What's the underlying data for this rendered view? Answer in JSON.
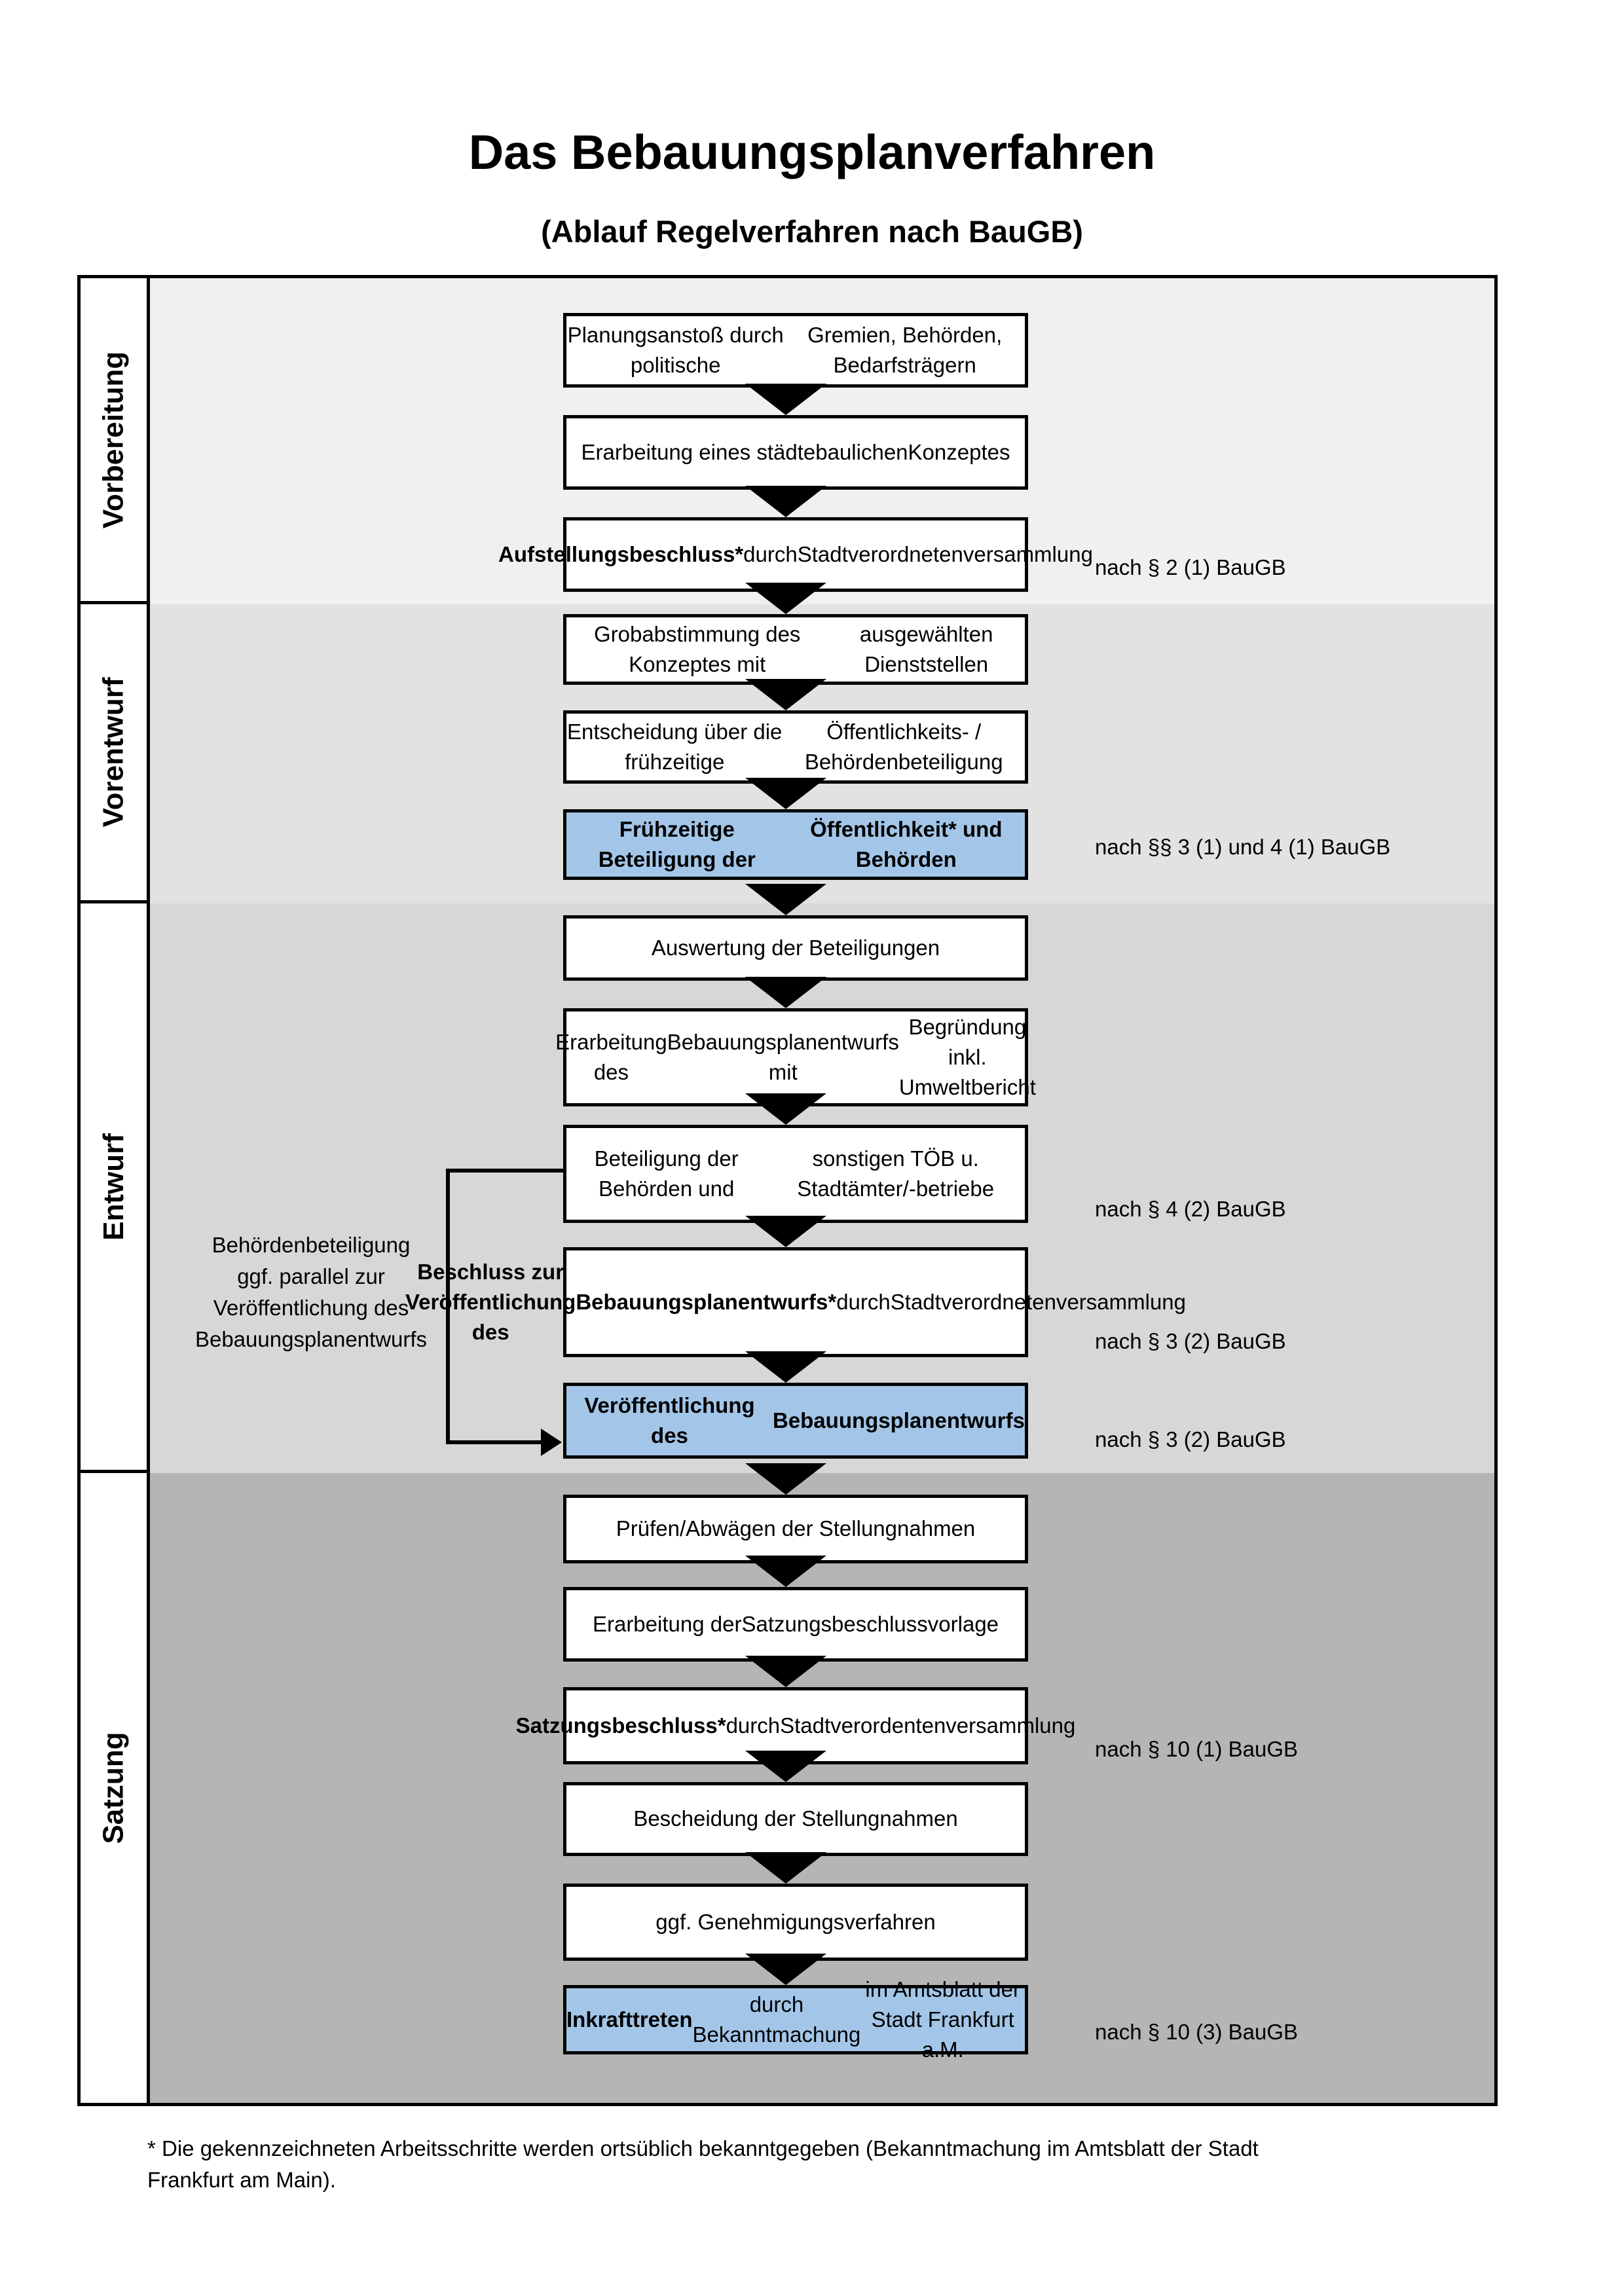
{
  "title": "Das Bebauungsplanverfahren",
  "subtitle": "(Ablauf Regelverfahren nach BauGB)",
  "colors": {
    "band_vorbereitung": "#f0f0f0",
    "band_vorentwurf": "#e2e2e2",
    "band_entwurf": "#d7d7d7",
    "band_satzung": "#b5b5b5",
    "highlight_box": "#a3c6e8",
    "border": "#000000"
  },
  "phases": [
    {
      "label": "Vorbereitung"
    },
    {
      "label": "Vorentwurf"
    },
    {
      "label": "Entwurf"
    },
    {
      "label": "Satzung"
    }
  ],
  "boxes": [
    {
      "id": "planungsanstoss",
      "highlight": false,
      "lines": [
        [
          {
            "t": "Planungsanstoß durch politische",
            "b": false
          }
        ],
        [
          {
            "t": "Gremien, Behörden, Bedarfsträgern",
            "b": false
          }
        ]
      ]
    },
    {
      "id": "staedtebauliches-konzept",
      "highlight": false,
      "lines": [
        [
          {
            "t": "Erarbeitung eines städtebaulichen",
            "b": false
          }
        ],
        [
          {
            "t": "Konzeptes",
            "b": false
          }
        ]
      ]
    },
    {
      "id": "aufstellungsbeschluss",
      "highlight": false,
      "lines": [
        [
          {
            "t": "Aufstellungsbeschluss*",
            "b": true
          },
          {
            "t": " durch",
            "b": false
          }
        ],
        [
          {
            "t": "Stadtverordnetenversammlung",
            "b": false
          }
        ]
      ]
    },
    {
      "id": "grobabstimmung",
      "highlight": false,
      "lines": [
        [
          {
            "t": "Grobabstimmung des Konzeptes mit",
            "b": false
          }
        ],
        [
          {
            "t": "ausgewählten Dienststellen",
            "b": false
          }
        ]
      ]
    },
    {
      "id": "entscheidung-beteiligung",
      "highlight": false,
      "lines": [
        [
          {
            "t": "Entscheidung über die frühzeitige",
            "b": false
          }
        ],
        [
          {
            "t": "Öffentlichkeits- / Behördenbeteiligung",
            "b": false
          }
        ]
      ]
    },
    {
      "id": "fruehzeitige-beteiligung",
      "highlight": true,
      "lines": [
        [
          {
            "t": "Frühzeitige Beteiligung der",
            "b": true
          }
        ],
        [
          {
            "t": "Öffentlichkeit* und Behörden",
            "b": true
          }
        ]
      ]
    },
    {
      "id": "auswertung",
      "highlight": false,
      "lines": [
        [
          {
            "t": "Auswertung der Beteiligungen",
            "b": false
          }
        ]
      ]
    },
    {
      "id": "erarbeitung-bebauungsplanentwurf",
      "highlight": false,
      "lines": [
        [
          {
            "t": "Erarbeitung des",
            "b": false
          }
        ],
        [
          {
            "t": "Bebauungsplanentwurfs mit",
            "b": false
          }
        ],
        [
          {
            "t": "Begründung inkl. Umweltbericht",
            "b": false
          }
        ]
      ]
    },
    {
      "id": "beteiligung-behoerden",
      "highlight": false,
      "lines": [
        [
          {
            "t": "Beteiligung der Behörden und",
            "b": false
          }
        ],
        [
          {
            "t": "sonstigen TÖB u. Stadtämter/-betriebe",
            "b": false
          }
        ]
      ]
    },
    {
      "id": "beschluss-veroeffentlichung",
      "highlight": false,
      "lines": [
        [
          {
            "t": "Beschluss zur Veröffentlichung des",
            "b": true
          }
        ],
        [
          {
            "t": "Bebauungsplanentwurfs*",
            "b": true
          },
          {
            "t": " durch",
            "b": false
          }
        ],
        [
          {
            "t": "Stadtverordnetenversammlung",
            "b": false
          }
        ]
      ]
    },
    {
      "id": "veroeffentlichung-entwurf",
      "highlight": true,
      "lines": [
        [
          {
            "t": "Veröffentlichung des",
            "b": true
          }
        ],
        [
          {
            "t": "Bebauungsplanentwurfs",
            "b": true
          }
        ]
      ]
    },
    {
      "id": "pruefen-abwaegen",
      "highlight": false,
      "lines": [
        [
          {
            "t": "Prüfen/Abwägen der Stellungnahmen",
            "b": false
          }
        ]
      ]
    },
    {
      "id": "satzungsbeschlussvorlage",
      "highlight": false,
      "lines": [
        [
          {
            "t": "Erarbeitung der",
            "b": false
          }
        ],
        [
          {
            "t": "Satzungsbeschlussvorlage",
            "b": false
          }
        ]
      ]
    },
    {
      "id": "satzungsbeschluss",
      "highlight": false,
      "lines": [
        [
          {
            "t": "Satzungsbeschluss*",
            "b": true
          },
          {
            "t": " durch",
            "b": false
          }
        ],
        [
          {
            "t": "Stadtverordentenversammlung",
            "b": false
          }
        ]
      ]
    },
    {
      "id": "bescheidung",
      "highlight": false,
      "lines": [
        [
          {
            "t": "Bescheidung der Stellungnahmen",
            "b": false
          }
        ]
      ]
    },
    {
      "id": "genehmigungsverfahren",
      "highlight": false,
      "lines": [
        [
          {
            "t": "ggf. Genehmigungsverfahren",
            "b": false
          }
        ]
      ]
    },
    {
      "id": "inkrafttreten",
      "highlight": true,
      "lines": [
        [
          {
            "t": "Inkrafttreten",
            "b": true
          },
          {
            "t": " durch Bekanntmachung",
            "b": false
          }
        ],
        [
          {
            "t": "im Amtsblatt der Stadt Frankfurt a.M.",
            "b": false
          }
        ]
      ]
    }
  ],
  "references": [
    {
      "text": "nach § 2 (1) BauGB"
    },
    {
      "text": "nach §§ 3 (1) und 4 (1) BauGB"
    },
    {
      "text": "nach § 4 (2) BauGB"
    },
    {
      "text": "nach § 3 (2) BauGB"
    },
    {
      "text": "nach § 3 (2) BauGB"
    },
    {
      "text": "nach § 10 (1) BauGB"
    },
    {
      "text": "nach § 10 (3) BauGB"
    }
  ],
  "annotation": {
    "lines": [
      [
        {
          "t": "Behördenbeteiligung",
          "b": false
        }
      ],
      [
        {
          "t": "ggf. parallel zur",
          "b": false
        }
      ],
      [
        {
          "t": "Veröffentlichung des",
          "b": false
        }
      ],
      [
        {
          "t": "Bebauungsplanentwurfs",
          "b": false
        }
      ]
    ]
  },
  "footnote": {
    "lines": [
      [
        {
          "t": "* Die gekennzeichneten Arbeitsschritte werden ortsüblich bekanntgegeben (Bekanntmachung im Amtsblatt  der Stadt",
          "b": false
        }
      ],
      [
        {
          "t": "Frankfurt am Main).",
          "b": false
        }
      ]
    ]
  }
}
